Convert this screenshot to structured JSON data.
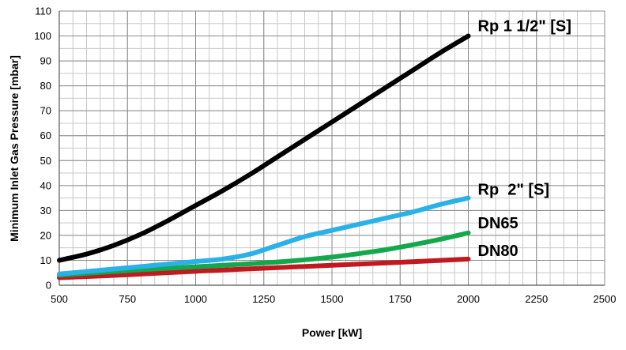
{
  "chart_data": {
    "type": "line",
    "xlabel": "Power [kW]",
    "ylabel": "Minimum Inlet Gas Pressure [mbar]",
    "xlim": [
      500,
      2500
    ],
    "ylim": [
      0,
      110
    ],
    "x_ticks": [
      500,
      750,
      1000,
      1250,
      1500,
      1750,
      2000,
      2250,
      2500
    ],
    "y_ticks": [
      0,
      10,
      20,
      30,
      40,
      50,
      60,
      70,
      80,
      90,
      100,
      110
    ],
    "x_minor_step": 50,
    "y_minor_step": 5,
    "grid": true,
    "legend": "none (series labelled at line ends)",
    "series": [
      {
        "name": "Rp 1 1/2\" [S]",
        "color": "#000000",
        "x": [
          500,
          600,
          700,
          800,
          900,
          1000,
          1100,
          1200,
          1300,
          1400,
          1500,
          1600,
          1700,
          1800,
          1900,
          2000
        ],
        "y": [
          10,
          12.5,
          16,
          20.5,
          26,
          32,
          38,
          44.5,
          51.5,
          58.5,
          65.5,
          72.5,
          79.5,
          86.5,
          93.5,
          100
        ]
      },
      {
        "name": "Rp  2\" [S]",
        "color": "#2ab1e8",
        "x": [
          500,
          600,
          700,
          800,
          900,
          1000,
          1100,
          1200,
          1300,
          1400,
          1500,
          1600,
          1700,
          1800,
          1900,
          2000
        ],
        "y": [
          4.5,
          5.5,
          6.5,
          7.5,
          8.5,
          9.5,
          10.5,
          12.5,
          16,
          19.5,
          22,
          24.5,
          27,
          29.5,
          32.5,
          35
        ]
      },
      {
        "name": "DN65",
        "color": "#14a84d",
        "x": [
          500,
          600,
          700,
          800,
          900,
          1000,
          1100,
          1200,
          1300,
          1400,
          1500,
          1600,
          1700,
          1800,
          1900,
          2000
        ],
        "y": [
          4,
          4.8,
          5.5,
          6.2,
          6.8,
          7.4,
          8,
          8.6,
          9.3,
          10.2,
          11.3,
          12.7,
          14.3,
          16.3,
          18.5,
          21
        ]
      },
      {
        "name": "DN80",
        "color": "#c0191f",
        "x": [
          500,
          750,
          1000,
          1250,
          1500,
          1750,
          2000
        ],
        "y": [
          3,
          4.2,
          5.6,
          6.8,
          8,
          9.2,
          10.5
        ]
      }
    ]
  }
}
